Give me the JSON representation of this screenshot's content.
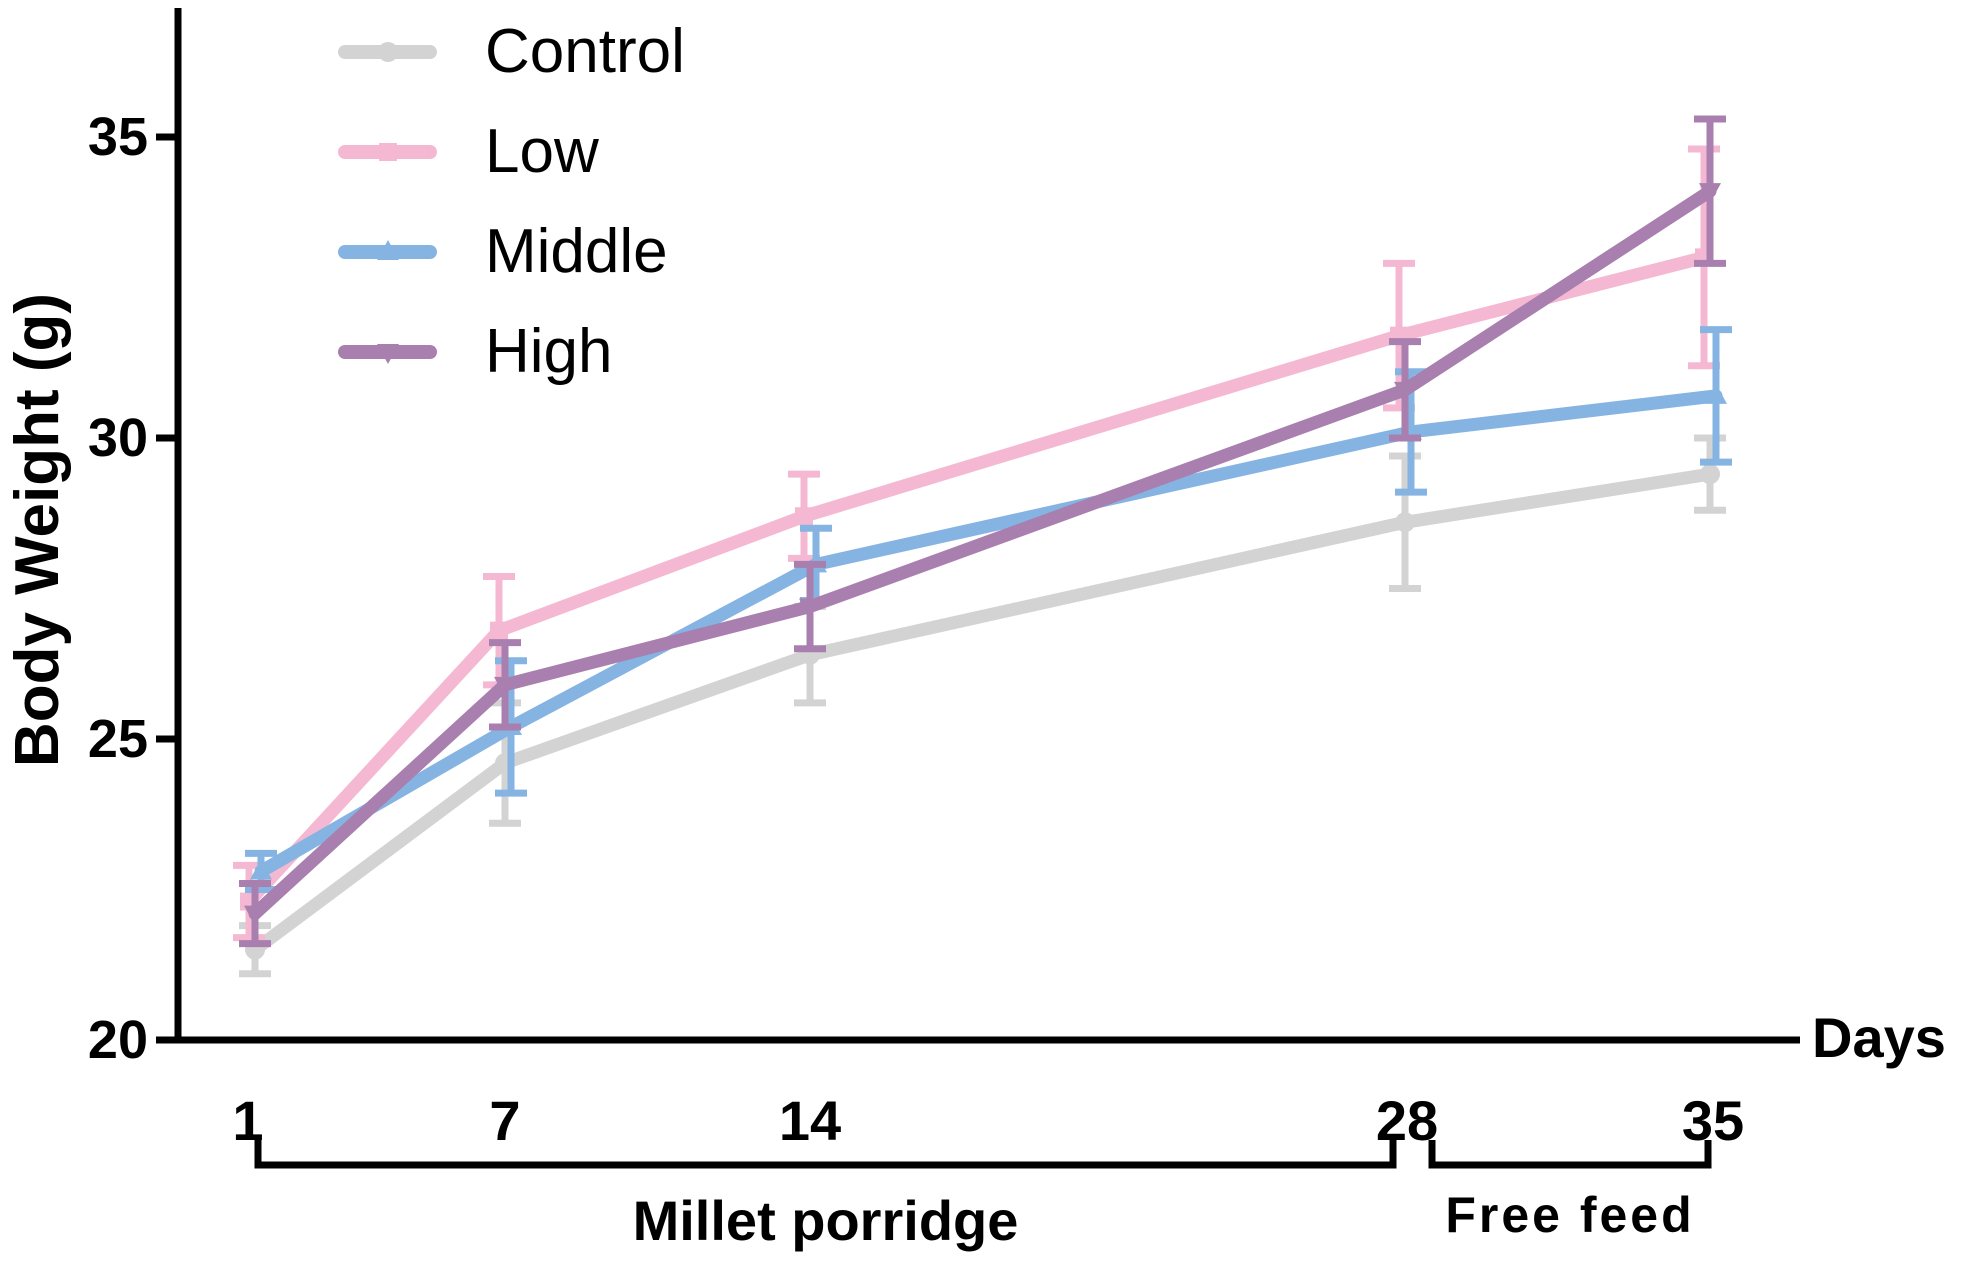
{
  "chart_data": {
    "type": "line",
    "ylabel": "Body Weight (g)",
    "xlabel": "Days",
    "ylim": [
      20,
      37
    ],
    "yticks": [
      20,
      25,
      30,
      35
    ],
    "x": [
      1,
      7,
      14,
      28,
      35
    ],
    "xtick_labels": [
      "1",
      "7",
      "14",
      "28",
      "35"
    ],
    "legend_position": "top-left",
    "series": [
      {
        "name": "Control",
        "color": "#d3d3d3",
        "marker": "circle",
        "values": [
          21.5,
          24.6,
          26.4,
          28.6,
          29.4
        ],
        "errors": [
          0.4,
          1.0,
          0.8,
          1.1,
          0.6
        ]
      },
      {
        "name": "Low",
        "color": "#f5b8d2",
        "marker": "square",
        "values": [
          22.3,
          26.8,
          28.7,
          31.7,
          33.0
        ],
        "errors": [
          0.6,
          0.9,
          0.7,
          1.2,
          1.8
        ]
      },
      {
        "name": "Middle",
        "color": "#86b4e2",
        "marker": "triangle-up",
        "values": [
          22.8,
          25.2,
          27.9,
          30.1,
          30.7
        ],
        "errors": [
          0.3,
          1.1,
          0.6,
          1.0,
          1.1
        ]
      },
      {
        "name": "High",
        "color": "#a87fae",
        "marker": "triangle-down",
        "values": [
          22.1,
          25.9,
          27.2,
          30.8,
          34.1
        ],
        "errors": [
          0.5,
          0.7,
          0.7,
          0.8,
          1.2
        ]
      }
    ],
    "periods": [
      {
        "label": "Millet porridge",
        "start": 1,
        "end": 28
      },
      {
        "label": "Free feed",
        "start": 28,
        "end": 35
      }
    ]
  }
}
